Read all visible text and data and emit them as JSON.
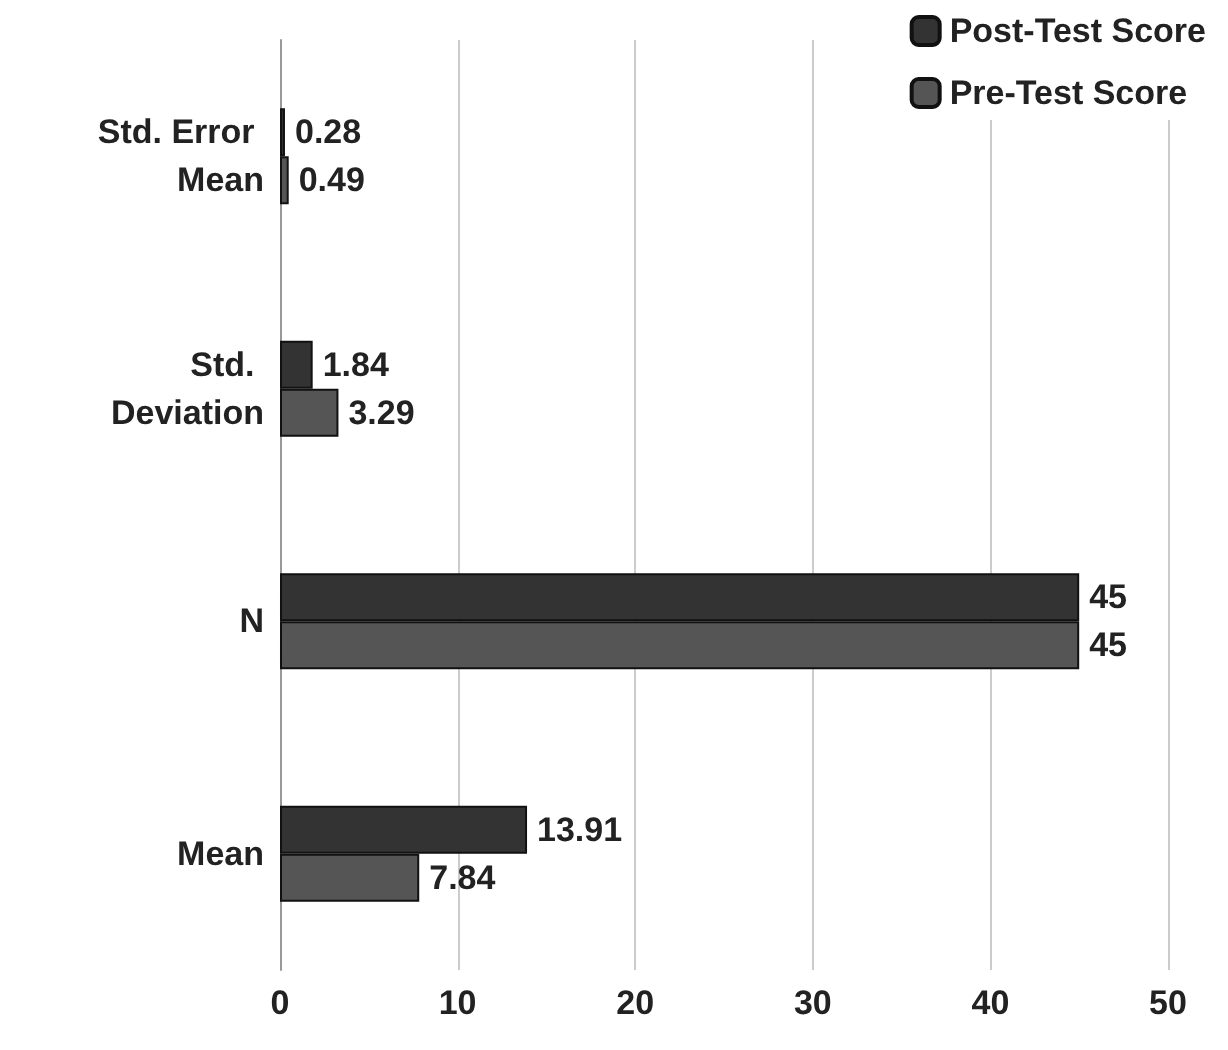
{
  "chart_data": {
    "type": "bar",
    "orientation": "horizontal",
    "categories": [
      "Std. Error Mean",
      "Std. Deviation",
      "N",
      "Mean"
    ],
    "series": [
      {
        "name": "Post-Test Score",
        "color": "#333333",
        "values": [
          0.28,
          1.84,
          45,
          13.91
        ]
      },
      {
        "name": "Pre-Test Score",
        "color": "#555555",
        "values": [
          0.49,
          3.29,
          45,
          7.84
        ]
      }
    ],
    "xlim": [
      0,
      50
    ],
    "xticks": [
      0,
      10,
      20,
      30,
      40,
      50
    ],
    "grid": "x",
    "legend": "top right",
    "data_labels": true
  }
}
